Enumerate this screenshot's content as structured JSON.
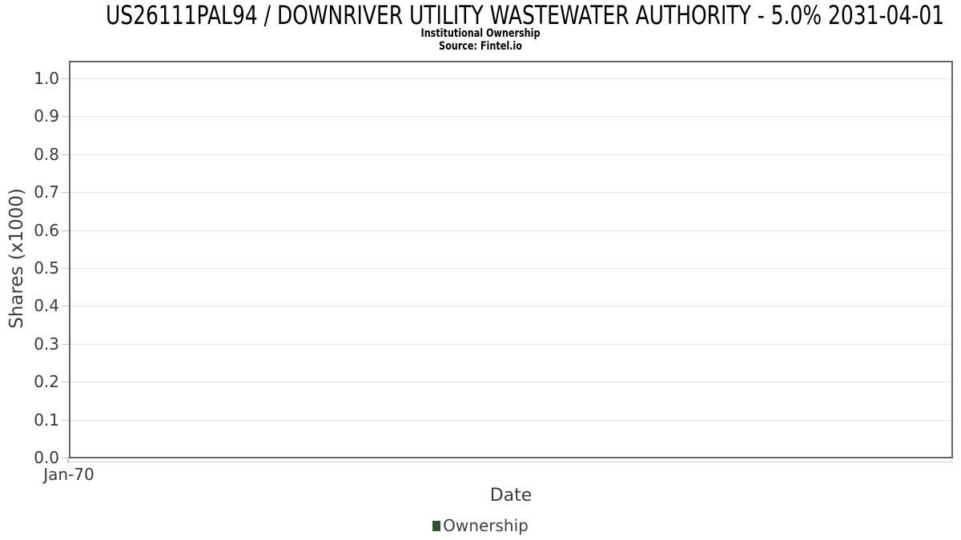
{
  "header": {
    "title": "US26111PAL94 / DOWNRIVER UTILITY WASTEWATER AUTHORITY - 5.0% 2031-04-01",
    "subtitle": "Institutional Ownership",
    "source": "Source: Fintel.io"
  },
  "chart_data": {
    "type": "line",
    "title": "US26111PAL94 / DOWNRIVER UTILITY WASTEWATER AUTHORITY - 5.0% 2031-04-01",
    "subtitle": "Institutional Ownership",
    "source": "Source: Fintel.io",
    "xlabel": "Date",
    "ylabel": "Shares (x1000)",
    "x_tick_labels": [
      "Jan-70"
    ],
    "y_ticks": [
      0.0,
      0.1,
      0.2,
      0.3,
      0.4,
      0.5,
      0.6,
      0.7,
      0.8,
      0.9,
      1.0
    ],
    "ylim": [
      0.0,
      1.047
    ],
    "grid": "horizontal",
    "legend_position": "bottom-center",
    "series": [
      {
        "name": "Ownership",
        "color": "#2a5633",
        "x": [],
        "values": []
      }
    ],
    "empty": true
  },
  "colors": {
    "series_green": "#2a5633",
    "plot_border": "#666666",
    "gridline": "#e4e4e4",
    "tick": "#c6c6c6",
    "axis_text": "#3a3a3a",
    "title_text": "#000000"
  }
}
